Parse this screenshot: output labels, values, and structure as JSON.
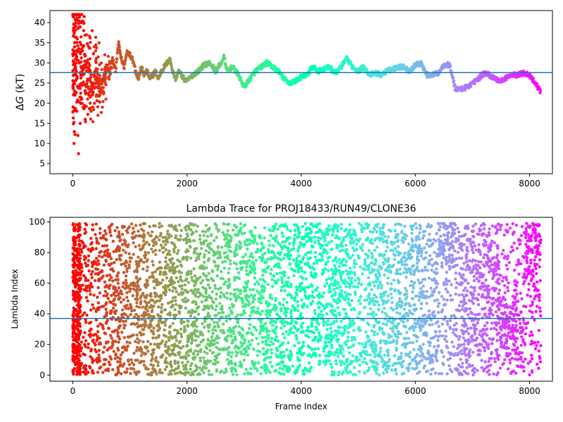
{
  "chart_data": [
    {
      "type": "scatter",
      "title": "",
      "xlabel": "",
      "ylabel": "ΔG (kT)",
      "ylabel_symbol": "Δ",
      "ylabel_var": "G",
      "ylabel_unit": " (kT)",
      "xlim": [
        -400,
        8400
      ],
      "ylim": [
        2.5,
        43
      ],
      "xticks": [
        0,
        2000,
        4000,
        6000,
        8000
      ],
      "yticks": [
        5,
        10,
        15,
        20,
        25,
        30,
        35,
        40
      ],
      "grid": false,
      "colormap": "rainbow (red at frame 0 → violet at last frame)",
      "reference_line": {
        "y": 27.6,
        "color": "#1f77b4"
      },
      "n_frames": 8200,
      "trace_anchor_points": [
        [
          0,
          30
        ],
        [
          50,
          26
        ],
        [
          100,
          35
        ],
        [
          150,
          32
        ],
        [
          200,
          29
        ],
        [
          250,
          24
        ],
        [
          300,
          27
        ],
        [
          350,
          22
        ],
        [
          400,
          29
        ],
        [
          450,
          25
        ],
        [
          500,
          22
        ],
        [
          550,
          27
        ],
        [
          600,
          29
        ],
        [
          650,
          27
        ],
        [
          700,
          31
        ],
        [
          750,
          28
        ],
        [
          800,
          35
        ],
        [
          850,
          31
        ],
        [
          900,
          29
        ],
        [
          950,
          33
        ],
        [
          1000,
          32
        ],
        [
          1050,
          31
        ],
        [
          1100,
          28
        ],
        [
          1150,
          26
        ],
        [
          1200,
          29
        ],
        [
          1250,
          27
        ],
        [
          1300,
          28
        ],
        [
          1350,
          26
        ],
        [
          1400,
          27
        ],
        [
          1450,
          28
        ],
        [
          1500,
          26
        ],
        [
          1550,
          28
        ],
        [
          1600,
          29
        ],
        [
          1650,
          30
        ],
        [
          1700,
          31
        ],
        [
          1750,
          28
        ],
        [
          1800,
          26
        ],
        [
          1850,
          28
        ],
        [
          1900,
          27
        ],
        [
          1950,
          26
        ],
        [
          2000,
          25.5
        ],
        [
          2100,
          27
        ],
        [
          2200,
          28
        ],
        [
          2300,
          29.5
        ],
        [
          2400,
          30
        ],
        [
          2500,
          28
        ],
        [
          2600,
          30
        ],
        [
          2650,
          31.5
        ],
        [
          2700,
          28
        ],
        [
          2800,
          29
        ],
        [
          2900,
          27
        ],
        [
          3000,
          24
        ],
        [
          3100,
          26
        ],
        [
          3200,
          28
        ],
        [
          3300,
          29
        ],
        [
          3400,
          30
        ],
        [
          3500,
          29
        ],
        [
          3600,
          28
        ],
        [
          3700,
          26
        ],
        [
          3800,
          25
        ],
        [
          3900,
          25.5
        ],
        [
          4000,
          26.5
        ],
        [
          4100,
          27
        ],
        [
          4200,
          29
        ],
        [
          4300,
          28
        ],
        [
          4400,
          28.5
        ],
        [
          4500,
          29
        ],
        [
          4600,
          27.5
        ],
        [
          4700,
          29
        ],
        [
          4800,
          31
        ],
        [
          4900,
          29
        ],
        [
          5000,
          28
        ],
        [
          5100,
          29
        ],
        [
          5200,
          27
        ],
        [
          5300,
          27.5
        ],
        [
          5400,
          27
        ],
        [
          5500,
          28
        ],
        [
          5600,
          28.5
        ],
        [
          5700,
          29
        ],
        [
          5800,
          29
        ],
        [
          5900,
          28
        ],
        [
          6000,
          29.5
        ],
        [
          6100,
          30
        ],
        [
          6200,
          27
        ],
        [
          6300,
          27
        ],
        [
          6400,
          27.5
        ],
        [
          6500,
          29.5
        ],
        [
          6600,
          29.5
        ],
        [
          6700,
          23.5
        ],
        [
          6800,
          23.5
        ],
        [
          6900,
          24
        ],
        [
          7000,
          25
        ],
        [
          7100,
          26
        ],
        [
          7200,
          27.5
        ],
        [
          7300,
          27
        ],
        [
          7400,
          26
        ],
        [
          7500,
          25.5
        ],
        [
          7600,
          26.5
        ],
        [
          7700,
          27
        ],
        [
          7800,
          27
        ],
        [
          7900,
          27.5
        ],
        [
          8000,
          27
        ],
        [
          8100,
          25
        ],
        [
          8190,
          23
        ]
      ],
      "early_points": [
        [
          0,
          42
        ],
        [
          10,
          38
        ],
        [
          20,
          10
        ],
        [
          30,
          34
        ],
        [
          40,
          22
        ],
        [
          50,
          31
        ],
        [
          60,
          28
        ],
        [
          70,
          18
        ],
        [
          80,
          36
        ],
        [
          90,
          12
        ],
        [
          100,
          7.5
        ],
        [
          110,
          30
        ],
        [
          120,
          24
        ],
        [
          130,
          15
        ],
        [
          140,
          27
        ],
        [
          150,
          40
        ],
        [
          160,
          21
        ],
        [
          170,
          33
        ],
        [
          180,
          19
        ],
        [
          190,
          38
        ],
        [
          200,
          41.5
        ],
        [
          210,
          29
        ],
        [
          220,
          16
        ],
        [
          240,
          37
        ],
        [
          260,
          26
        ],
        [
          280,
          22
        ],
        [
          300,
          31
        ],
        [
          320,
          18
        ],
        [
          340,
          38
        ],
        [
          360,
          25
        ],
        [
          380,
          20
        ],
        [
          400,
          33
        ],
        [
          420,
          28
        ],
        [
          440,
          17
        ],
        [
          460,
          35
        ],
        [
          480,
          23
        ],
        [
          500,
          30
        ],
        [
          520,
          19
        ],
        [
          540,
          26
        ],
        [
          560,
          32
        ],
        [
          580,
          21
        ],
        [
          600,
          28
        ]
      ]
    },
    {
      "type": "scatter",
      "title": "Lambda Trace for PROJ18433/RUN49/CLONE36",
      "xlabel": "Frame Index",
      "ylabel": "Lambda Index",
      "xlim": [
        -400,
        8400
      ],
      "ylim": [
        -4,
        103
      ],
      "xticks": [
        0,
        2000,
        4000,
        6000,
        8000
      ],
      "yticks": [
        0,
        20,
        40,
        60,
        80,
        100
      ],
      "grid": false,
      "colormap": "rainbow (red at frame 0 → violet at last frame)",
      "reference_line": {
        "y": 37,
        "color": "#1f77b4"
      },
      "n_frames": 8200,
      "lambda_range": [
        0,
        99
      ],
      "dense_bias_regions": [
        {
          "x_range": [
            6400,
            6700
          ],
          "lambda_center": 88
        },
        {
          "x_range": [
            7500,
            7800
          ],
          "lambda_center": 30
        },
        {
          "x_range": [
            7900,
            8200
          ],
          "lambda_center": 82
        }
      ]
    }
  ]
}
